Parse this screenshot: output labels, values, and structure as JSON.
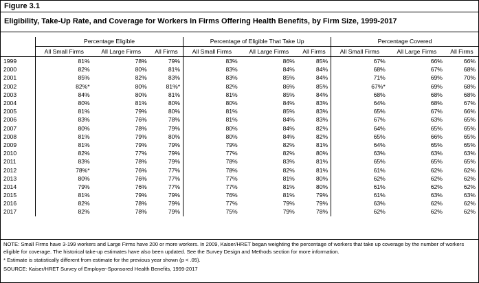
{
  "figure_label": "Figure 3.1",
  "title": "Eligibility, Take-Up Rate, and Coverage for Workers In Firms Offering Health Benefits, by Firm Size, 1999-2017",
  "groups": [
    "Percentage Eligible",
    "Percentage of Eligible That Take Up",
    "Percentage Covered"
  ],
  "columns": [
    "All Small Firms",
    "All Large Firms",
    "All Firms",
    "All Small Firms",
    "All Large Firms",
    "All Firms",
    "All Small Firms",
    "All Large Firms",
    "All Firms"
  ],
  "rows": [
    {
      "year": "1999",
      "cells": [
        "81%",
        "78%",
        "79%",
        "83%",
        "86%",
        "85%",
        "67%",
        "66%",
        "66%"
      ]
    },
    {
      "year": "2000",
      "cells": [
        "82%",
        "80%",
        "81%",
        "83%",
        "84%",
        "84%",
        "68%",
        "67%",
        "68%"
      ]
    },
    {
      "year": "2001",
      "cells": [
        "85%",
        "82%",
        "83%",
        "83%",
        "85%",
        "84%",
        "71%",
        "69%",
        "70%"
      ]
    },
    {
      "year": "2002",
      "cells": [
        "82%*",
        "80%",
        "81%*",
        "82%",
        "86%",
        "85%",
        "67%*",
        "69%",
        "68%"
      ]
    },
    {
      "year": "2003",
      "cells": [
        "84%",
        "80%",
        "81%",
        "81%",
        "85%",
        "84%",
        "68%",
        "68%",
        "68%"
      ]
    },
    {
      "year": "2004",
      "cells": [
        "80%",
        "81%",
        "80%",
        "80%",
        "84%",
        "83%",
        "64%",
        "68%",
        "67%"
      ]
    },
    {
      "year": "2005",
      "cells": [
        "81%",
        "79%",
        "80%",
        "81%",
        "85%",
        "83%",
        "65%",
        "67%",
        "66%"
      ]
    },
    {
      "year": "2006",
      "cells": [
        "83%",
        "76%",
        "78%",
        "81%",
        "84%",
        "83%",
        "67%",
        "63%",
        "65%"
      ]
    },
    {
      "year": "2007",
      "cells": [
        "80%",
        "78%",
        "79%",
        "80%",
        "84%",
        "82%",
        "64%",
        "65%",
        "65%"
      ]
    },
    {
      "year": "2008",
      "cells": [
        "81%",
        "79%",
        "80%",
        "80%",
        "84%",
        "82%",
        "65%",
        "66%",
        "65%"
      ]
    },
    {
      "year": "2009",
      "cells": [
        "81%",
        "79%",
        "79%",
        "79%",
        "82%",
        "81%",
        "64%",
        "65%",
        "65%"
      ]
    },
    {
      "year": "2010",
      "cells": [
        "82%",
        "77%",
        "79%",
        "77%",
        "82%",
        "80%",
        "63%",
        "63%",
        "63%"
      ]
    },
    {
      "year": "2011",
      "cells": [
        "83%",
        "78%",
        "79%",
        "78%",
        "83%",
        "81%",
        "65%",
        "65%",
        "65%"
      ]
    },
    {
      "year": "2012",
      "cells": [
        "78%*",
        "76%",
        "77%",
        "78%",
        "82%",
        "81%",
        "61%",
        "62%",
        "62%"
      ]
    },
    {
      "year": "2013",
      "cells": [
        "80%",
        "76%",
        "77%",
        "77%",
        "81%",
        "80%",
        "62%",
        "62%",
        "62%"
      ]
    },
    {
      "year": "2014",
      "cells": [
        "79%",
        "76%",
        "77%",
        "77%",
        "81%",
        "80%",
        "61%",
        "62%",
        "62%"
      ]
    },
    {
      "year": "2015",
      "cells": [
        "81%",
        "79%",
        "79%",
        "76%",
        "81%",
        "79%",
        "61%",
        "63%",
        "63%"
      ]
    },
    {
      "year": "2016",
      "cells": [
        "82%",
        "78%",
        "79%",
        "77%",
        "79%",
        "79%",
        "63%",
        "62%",
        "62%"
      ]
    },
    {
      "year": "2017",
      "cells": [
        "82%",
        "78%",
        "79%",
        "75%",
        "79%",
        "78%",
        "62%",
        "62%",
        "62%"
      ]
    }
  ],
  "note": "NOTE: Small Firms have 3-199 workers and Large Firms have 200 or more workers. In 2009, Kaiser/HRET began weighting the percentage of workers that take up coverage by the number of workers eligible for coverage. The historical take-up estimates have also been updated. See the Survey Design and Methods section for more information.",
  "footnote": "* Estimate is statistically different from estimate for the previous year shown (p < .05).",
  "source": "SOURCE: Kaiser/HRET Survey of Employer-Sponsored Health Benefits, 1999-2017"
}
